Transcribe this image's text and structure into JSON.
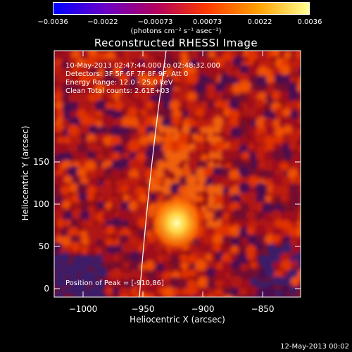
{
  "chart_data": {
    "type": "heatmap",
    "title": "Reconstructed RHESSI Image",
    "xlabel": "Heliocentric X (arcsec)",
    "ylabel": "Heliocentric Y (arcsec)",
    "xlim": [
      -1014,
      -924
    ],
    "ylim": [
      -10,
      180
    ],
    "x_ticks": [
      "−1000",
      "−950",
      "−900",
      "−850"
    ],
    "x_tick_values": [
      -1000,
      -950,
      -900,
      -850
    ],
    "y_ticks": [
      "0",
      "50",
      "100",
      "150"
    ],
    "y_tick_values": [
      0,
      50,
      100,
      150
    ],
    "colorbar": {
      "ticks": [
        "−0.0036",
        "−0.0022",
        "−0.00073",
        "0.00073",
        "0.0022",
        "0.0036"
      ],
      "tick_values": [
        -0.0036,
        -0.0022,
        -0.00073,
        0.00073,
        0.0022,
        0.0036
      ],
      "range": [
        -0.0036,
        0.0036
      ],
      "units": "(photons cm⁻² s⁻¹ asec⁻²)",
      "colors": [
        "#0000ff",
        "#6a00c8",
        "#b00060",
        "#ff3a00",
        "#ffa000",
        "#ffff90"
      ]
    },
    "annotations": {
      "time_range": "10-May-2013 02:47:44.000 to 02:48:32.000",
      "detectors": "Detectors: 3F 5F 6F 7F 8F 9F, Att 0",
      "energy": "Energy Range: 12.0 - 25.0 keV",
      "clean": "Clean     Total counts: 2.61E+03",
      "peak": "Position of Peak = [-910,86]"
    },
    "peak": {
      "x": -910,
      "y": 86
    }
  },
  "footer": {
    "date": "12-May-2013 00:02"
  }
}
